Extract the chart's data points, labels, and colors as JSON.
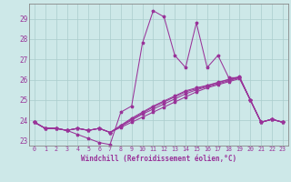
{
  "xlabel": "Windchill (Refroidissement éolien,°C)",
  "background_color": "#cde8e8",
  "grid_color": "#aacccc",
  "line_color": "#993399",
  "xlim": [
    -0.5,
    23.5
  ],
  "ylim": [
    22.75,
    29.75
  ],
  "xticks": [
    0,
    1,
    2,
    3,
    4,
    5,
    6,
    7,
    8,
    9,
    10,
    11,
    12,
    13,
    14,
    15,
    16,
    17,
    18,
    19,
    20,
    21,
    22,
    23
  ],
  "yticks": [
    23,
    24,
    25,
    26,
    27,
    28,
    29
  ],
  "series": [
    [
      23.9,
      23.6,
      23.6,
      23.5,
      23.3,
      23.1,
      22.9,
      22.8,
      24.4,
      24.7,
      27.8,
      29.4,
      29.1,
      27.2,
      26.6,
      28.8,
      26.6,
      27.2,
      26.1,
      26.1,
      25.0,
      23.9,
      24.05,
      23.9
    ],
    [
      23.9,
      23.6,
      23.6,
      23.5,
      23.6,
      23.5,
      23.6,
      23.4,
      23.65,
      23.9,
      24.15,
      24.4,
      24.65,
      24.9,
      25.15,
      25.4,
      25.6,
      25.75,
      25.9,
      26.05,
      25.0,
      23.9,
      24.05,
      23.9
    ],
    [
      23.9,
      23.6,
      23.6,
      23.5,
      23.6,
      23.5,
      23.6,
      23.4,
      23.7,
      24.0,
      24.3,
      24.55,
      24.8,
      25.05,
      25.3,
      25.5,
      25.65,
      25.8,
      25.95,
      26.1,
      25.0,
      23.9,
      24.05,
      23.9
    ],
    [
      23.9,
      23.6,
      23.6,
      23.5,
      23.6,
      23.5,
      23.6,
      23.4,
      23.72,
      24.05,
      24.35,
      24.65,
      24.9,
      25.15,
      25.4,
      25.55,
      25.7,
      25.85,
      26.0,
      26.12,
      25.0,
      23.9,
      24.05,
      23.9
    ],
    [
      23.9,
      23.6,
      23.6,
      23.5,
      23.6,
      23.5,
      23.6,
      23.4,
      23.75,
      24.1,
      24.4,
      24.7,
      24.95,
      25.2,
      25.45,
      25.6,
      25.72,
      25.87,
      26.02,
      26.15,
      25.0,
      23.9,
      24.05,
      23.9
    ]
  ]
}
